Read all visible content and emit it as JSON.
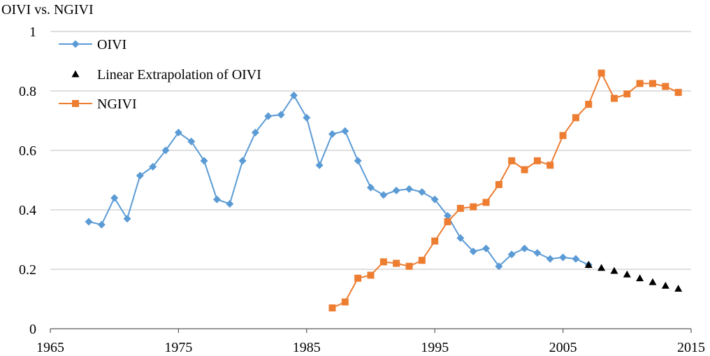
{
  "chart_data": {
    "type": "line",
    "title": "OIVI vs. NGIVI",
    "xlim": [
      1965,
      2015
    ],
    "ylim": [
      0,
      1
    ],
    "x_ticks": [
      "1965",
      "1975",
      "1985",
      "1995",
      "2005",
      "2015"
    ],
    "y_ticks": [
      "0",
      "0.2",
      "0.4",
      "0.6",
      "0.8",
      "1"
    ],
    "grid": "horizontal",
    "legend": "top-left",
    "series": [
      {
        "name": "OIVI",
        "marker": "diamond",
        "color": "#5b9bd5",
        "x": [
          1968,
          1969,
          1970,
          1971,
          1972,
          1973,
          1974,
          1975,
          1976,
          1977,
          1978,
          1979,
          1980,
          1981,
          1982,
          1983,
          1984,
          1985,
          1986,
          1987,
          1988,
          1989,
          1990,
          1991,
          1992,
          1993,
          1994,
          1995,
          1996,
          1997,
          1998,
          1999,
          2000,
          2001,
          2002,
          2003,
          2004,
          2005,
          2006,
          2007
        ],
        "y": [
          0.36,
          0.35,
          0.44,
          0.37,
          0.515,
          0.545,
          0.6,
          0.66,
          0.63,
          0.565,
          0.435,
          0.42,
          0.565,
          0.66,
          0.715,
          0.72,
          0.785,
          0.71,
          0.55,
          0.655,
          0.665,
          0.565,
          0.475,
          0.45,
          0.465,
          0.47,
          0.46,
          0.435,
          0.38,
          0.305,
          0.26,
          0.27,
          0.21,
          0.25,
          0.27,
          0.255,
          0.235,
          0.24,
          0.235,
          0.215
        ]
      },
      {
        "name": "Linear Extrapolation of OIVI",
        "marker": "triangle",
        "color": "#000000",
        "x": [
          2007,
          2008,
          2009,
          2010,
          2011,
          2012,
          2013,
          2014
        ],
        "y": [
          0.215,
          0.205,
          0.195,
          0.183,
          0.17,
          0.157,
          0.145,
          0.135
        ]
      },
      {
        "name": "NGIVI",
        "marker": "square",
        "color": "#ed7d31",
        "x": [
          1987,
          1988,
          1989,
          1990,
          1991,
          1992,
          1993,
          1994,
          1995,
          1996,
          1997,
          1998,
          1999,
          2000,
          2001,
          2002,
          2003,
          2004,
          2005,
          2006,
          2007,
          2008,
          2009,
          2010,
          2011,
          2012,
          2013,
          2014
        ],
        "y": [
          0.07,
          0.09,
          0.17,
          0.18,
          0.225,
          0.22,
          0.21,
          0.23,
          0.295,
          0.36,
          0.405,
          0.41,
          0.425,
          0.485,
          0.565,
          0.535,
          0.565,
          0.55,
          0.65,
          0.71,
          0.755,
          0.86,
          0.775,
          0.79,
          0.825,
          0.825,
          0.815,
          0.795
        ]
      }
    ]
  }
}
